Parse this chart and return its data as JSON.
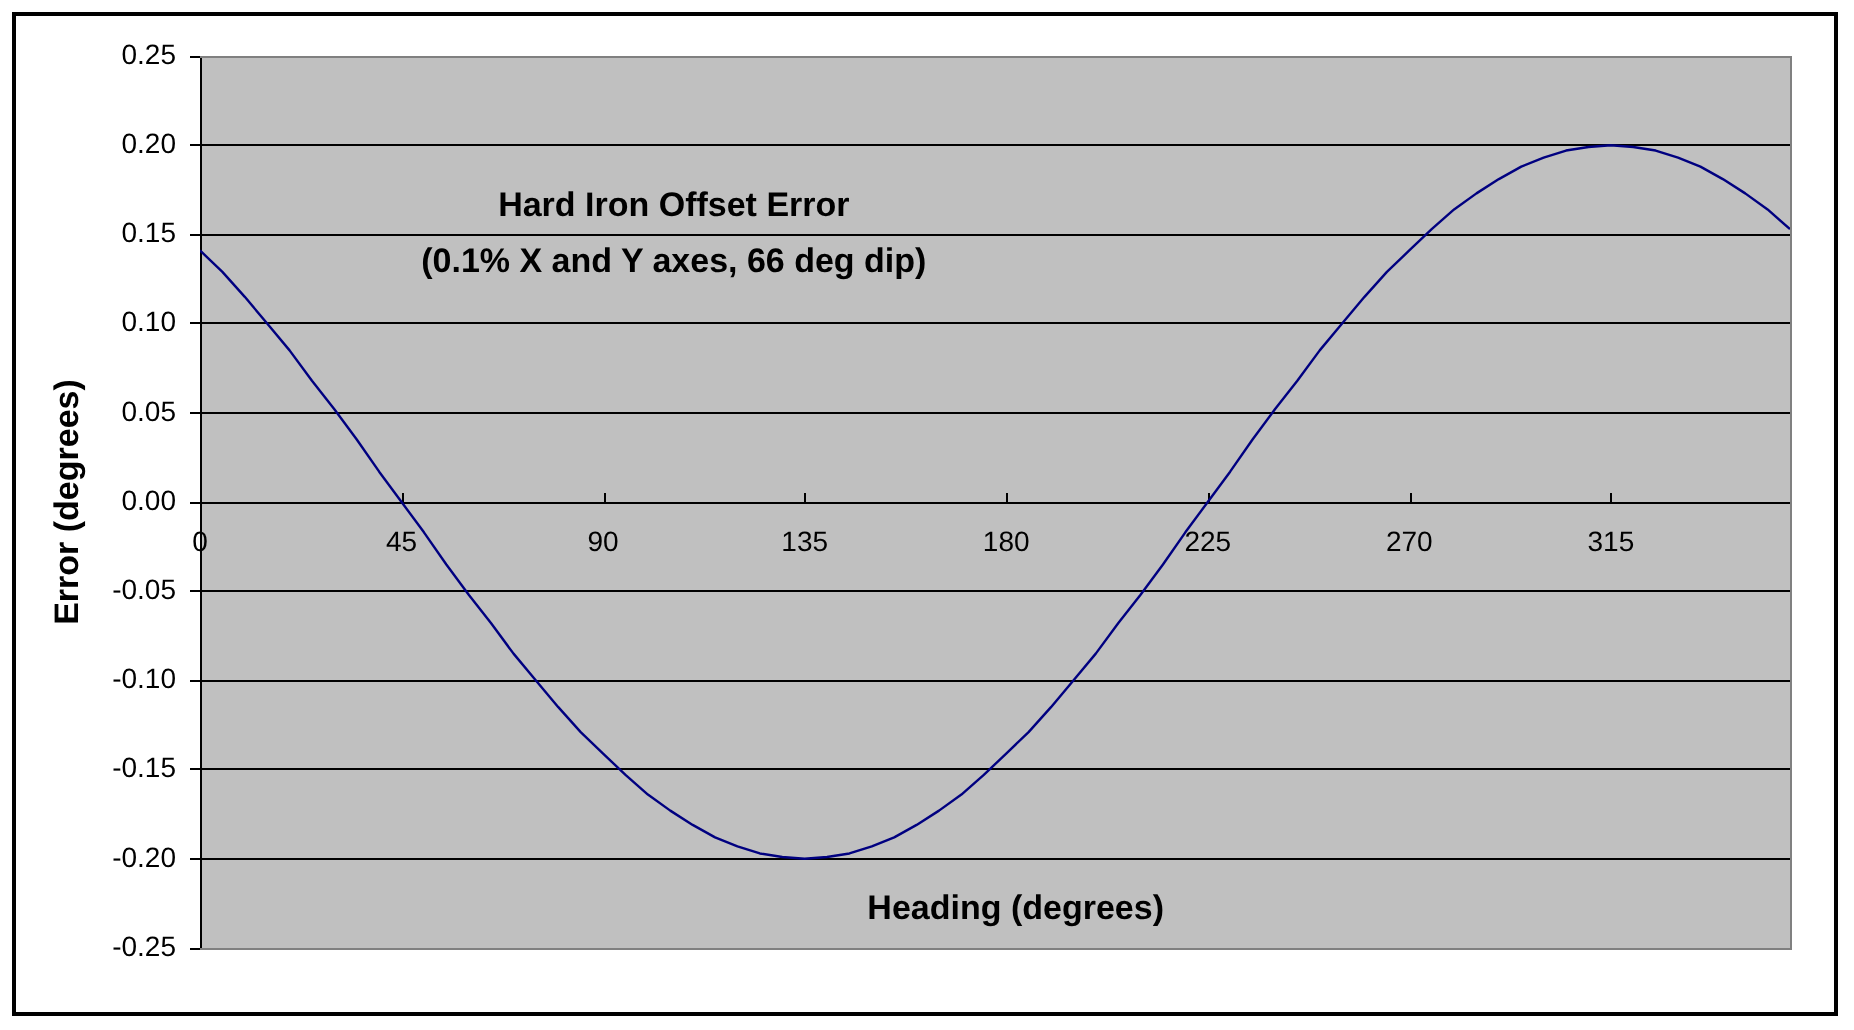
{
  "chart_data": {
    "type": "line",
    "title": "Hard Iron Offset Error",
    "subtitle": "(0.1% X and Y axes, 66 deg dip)",
    "xlabel": "Heading (degrees)",
    "ylabel": "Error (degrees)",
    "x": [
      0,
      5,
      10,
      15,
      20,
      25,
      30,
      35,
      40,
      45,
      50,
      55,
      60,
      65,
      70,
      75,
      80,
      85,
      90,
      95,
      100,
      105,
      110,
      115,
      120,
      125,
      130,
      135,
      140,
      145,
      150,
      155,
      160,
      165,
      170,
      175,
      180,
      185,
      190,
      195,
      200,
      205,
      210,
      215,
      220,
      225,
      230,
      235,
      240,
      245,
      250,
      255,
      260,
      265,
      270,
      275,
      280,
      285,
      290,
      295,
      300,
      305,
      310,
      315,
      320,
      325,
      330,
      335,
      340,
      345,
      350,
      355
    ],
    "series": [
      {
        "color": "#000080",
        "values": [
          0.141,
          0.129,
          0.115,
          0.1,
          0.085,
          0.068,
          0.052,
          0.035,
          0.017,
          0,
          -0.017,
          -0.035,
          -0.052,
          -0.068,
          -0.085,
          -0.1,
          -0.115,
          -0.129,
          -0.141,
          -0.153,
          -0.164,
          -0.173,
          -0.181,
          -0.188,
          -0.193,
          -0.197,
          -0.199,
          -0.2,
          -0.199,
          -0.197,
          -0.193,
          -0.188,
          -0.181,
          -0.173,
          -0.164,
          -0.153,
          -0.141,
          -0.129,
          -0.115,
          -0.1,
          -0.085,
          -0.068,
          -0.052,
          -0.035,
          -0.017,
          0,
          0.017,
          0.035,
          0.052,
          0.068,
          0.085,
          0.1,
          0.115,
          0.129,
          0.141,
          0.153,
          0.164,
          0.173,
          0.181,
          0.188,
          0.193,
          0.197,
          0.199,
          0.2,
          0.199,
          0.197,
          0.193,
          0.188,
          0.181,
          0.173,
          0.164,
          0.153
        ]
      }
    ],
    "xlim": [
      0,
      355
    ],
    "xticks": [
      0,
      45,
      90,
      135,
      180,
      225,
      270,
      315
    ],
    "ylim": [
      -0.25,
      0.25
    ],
    "yticks": [
      0.25,
      {
        "value": 0.2,
        "label": "0.20"
      },
      0.15,
      {
        "value": 0.1,
        "label": "0.10"
      },
      0.05,
      {
        "value": 0,
        "label": "0.00"
      },
      -0.05,
      {
        "value": -0.1,
        "label": "-0.10"
      },
      -0.15,
      {
        "value": -0.2,
        "label": "-0.20"
      },
      -0.25
    ],
    "grid": "y",
    "legend": false,
    "marker": "none",
    "line_style": "solid"
  }
}
